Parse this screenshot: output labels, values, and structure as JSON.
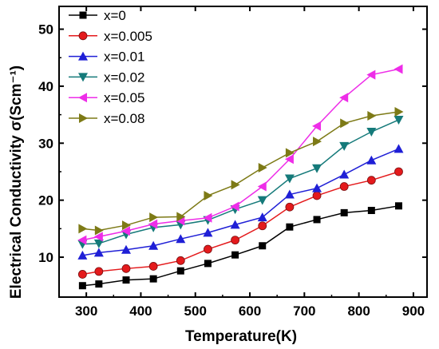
{
  "chart_data": {
    "type": "line",
    "xlabel": "Temperature(K)",
    "ylabel": "Electrical Conductivity σ(Scm⁻¹)",
    "xlim": [
      250,
      925
    ],
    "ylim": [
      3,
      54
    ],
    "x_ticks": [
      300,
      400,
      500,
      600,
      700,
      800,
      900
    ],
    "y_ticks": [
      10,
      20,
      30,
      40,
      50
    ],
    "grid": false,
    "legend_position": "top-left",
    "x": [
      293,
      323,
      373,
      423,
      473,
      523,
      573,
      623,
      673,
      723,
      773,
      823,
      873
    ],
    "series": [
      {
        "name": "x=0",
        "color": "#000000",
        "marker": "square",
        "values": [
          5.0,
          5.3,
          6.0,
          6.2,
          7.6,
          8.9,
          10.4,
          12.0,
          15.3,
          16.6,
          17.8,
          18.2,
          19.0
        ]
      },
      {
        "name": "x=0.005",
        "color": "#e41a1c",
        "marker": "circle",
        "values": [
          7.0,
          7.5,
          8.0,
          8.4,
          9.4,
          11.4,
          13.0,
          15.5,
          18.8,
          20.8,
          22.4,
          23.5,
          25.0
        ]
      },
      {
        "name": "x=0.01",
        "color": "#1f1fd6",
        "marker": "triangle-up",
        "values": [
          10.3,
          10.8,
          11.3,
          12.0,
          13.2,
          14.3,
          15.7,
          17.0,
          21.0,
          22.1,
          24.5,
          27.0,
          29.0
        ]
      },
      {
        "name": "x=0.02",
        "color": "#157a7a",
        "marker": "triangle-down",
        "values": [
          12.3,
          12.4,
          14.0,
          15.2,
          15.7,
          16.5,
          18.4,
          20.0,
          23.8,
          25.6,
          29.5,
          32.0,
          34.1
        ]
      },
      {
        "name": "x=0.05",
        "color": "#ee2de8",
        "marker": "triangle-left",
        "values": [
          13.0,
          13.6,
          14.6,
          15.8,
          16.4,
          16.9,
          18.9,
          22.4,
          27.2,
          33.0,
          38.0,
          42.0,
          43.0
        ]
      },
      {
        "name": "x=0.08",
        "color": "#7d7a16",
        "marker": "triangle-right",
        "values": [
          15.0,
          14.7,
          15.6,
          17.0,
          17.1,
          20.8,
          22.7,
          25.7,
          28.3,
          30.3,
          33.5,
          34.8,
          35.5
        ]
      }
    ]
  }
}
